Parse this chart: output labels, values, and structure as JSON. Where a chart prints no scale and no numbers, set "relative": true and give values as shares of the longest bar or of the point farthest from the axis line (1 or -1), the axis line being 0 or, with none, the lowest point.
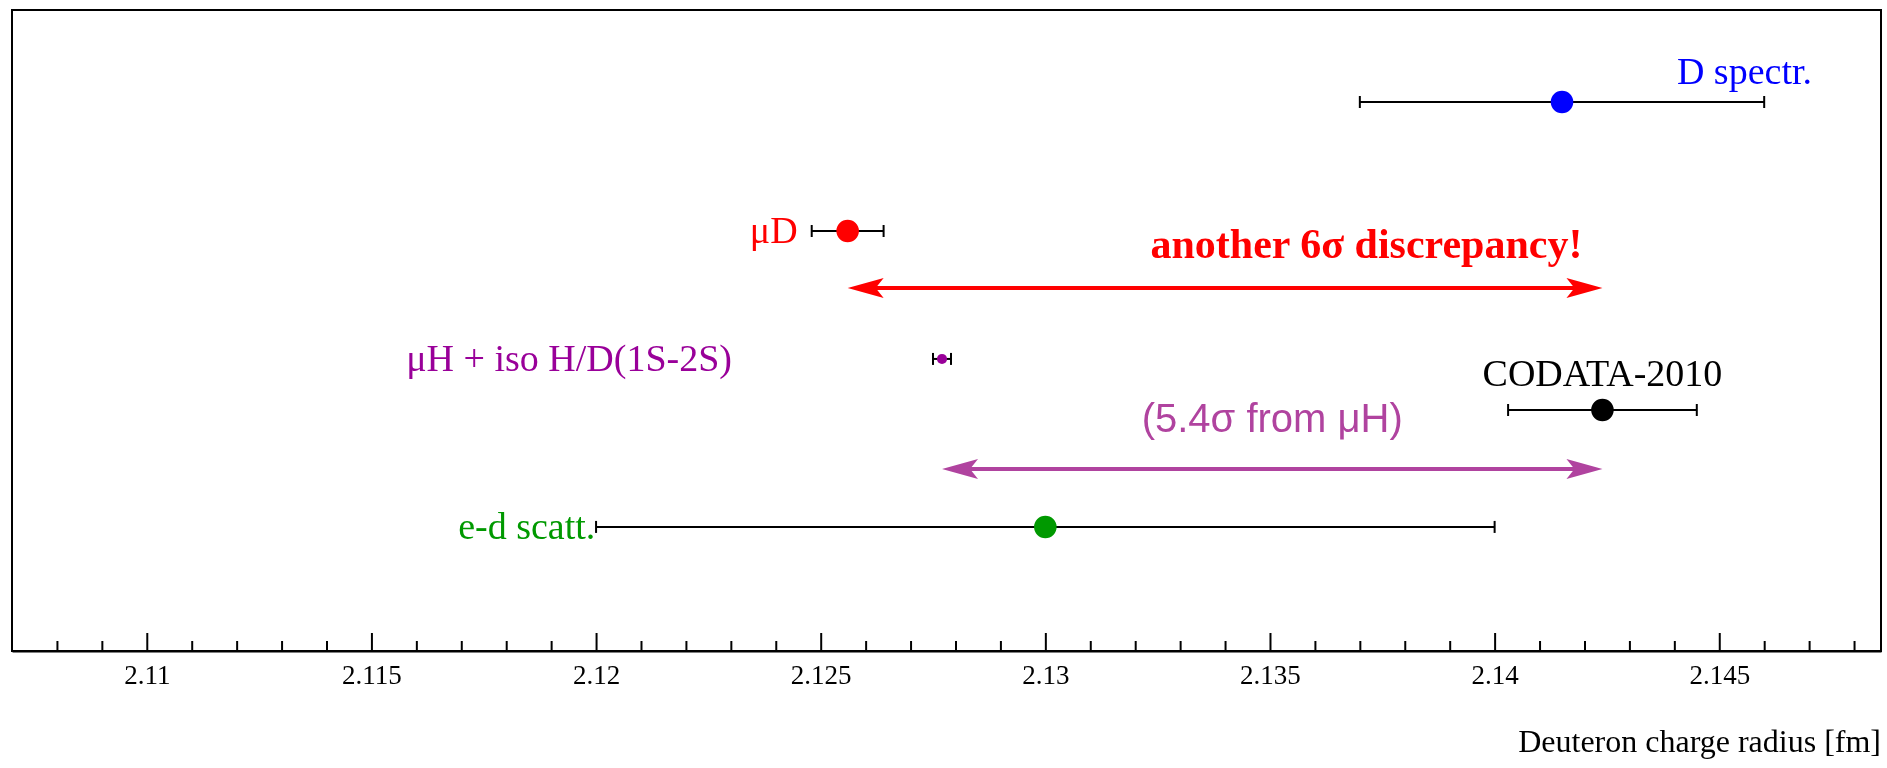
{
  "chart_data": {
    "type": "scatter",
    "xlabel": "Deuteron charge radius [fm]",
    "relative": true,
    "xlim": [
      2.107,
      2.1486
    ],
    "xticks": [
      {
        "value": 2.108,
        "label": null
      },
      {
        "value": 2.109,
        "label": null
      },
      2.11,
      {
        "value": 2.111,
        "label": null
      },
      {
        "value": 2.112,
        "label": null
      },
      {
        "value": 2.113,
        "label": null
      },
      {
        "value": 2.114,
        "label": null
      },
      2.115,
      {
        "value": 2.116,
        "label": null
      },
      {
        "value": 2.117,
        "label": null
      },
      {
        "value": 2.118,
        "label": null
      },
      {
        "value": 2.119,
        "label": null
      },
      2.12,
      {
        "value": 2.121,
        "label": null
      },
      {
        "value": 2.122,
        "label": null
      },
      {
        "value": 2.123,
        "label": null
      },
      {
        "value": 2.124,
        "label": null
      },
      2.125,
      {
        "value": 2.126,
        "label": null
      },
      {
        "value": 2.127,
        "label": null
      },
      {
        "value": 2.128,
        "label": null
      },
      {
        "value": 2.129,
        "label": null
      },
      2.13,
      {
        "value": 2.131,
        "label": null
      },
      {
        "value": 2.132,
        "label": null
      },
      {
        "value": 2.133,
        "label": null
      },
      {
        "value": 2.134,
        "label": null
      },
      2.135,
      {
        "value": 2.136,
        "label": null
      },
      {
        "value": 2.137,
        "label": null
      },
      {
        "value": 2.138,
        "label": null
      },
      {
        "value": 2.139,
        "label": null
      },
      2.14,
      {
        "value": 2.141,
        "label": null
      },
      {
        "value": 2.142,
        "label": null
      },
      {
        "value": 2.143,
        "label": null
      },
      {
        "value": 2.144,
        "label": null
      },
      2.145,
      {
        "value": 2.146,
        "label": null
      },
      {
        "value": 2.147,
        "label": null
      },
      {
        "value": 2.148,
        "label": null
      }
    ],
    "tick_labels": "x",
    "grid": false,
    "marker": "circle",
    "x": [
      2.1415,
      2.1256,
      2.1277,
      2.1424,
      2.13
    ],
    "values": [
      1,
      0.765,
      0.532,
      0.439,
      0.226
    ],
    "xerrors": [
      0.0045,
      0.0008,
      0.0002,
      0.0021,
      0.01
    ],
    "sizes": [
      1,
      1,
      0.2,
      1,
      1
    ],
    "colors": [
      "#0000ff",
      "#ff0000",
      "#990099",
      "#000000",
      "#009900"
    ],
    "annotations": [
      "D spectr.",
      "μD",
      "μH  +  iso H/D(1S-2S)",
      "CODATA-2010",
      "e-d scatt.",
      "another 6σ discrepancy!",
      "(5.4σ from μH)"
    ]
  }
}
